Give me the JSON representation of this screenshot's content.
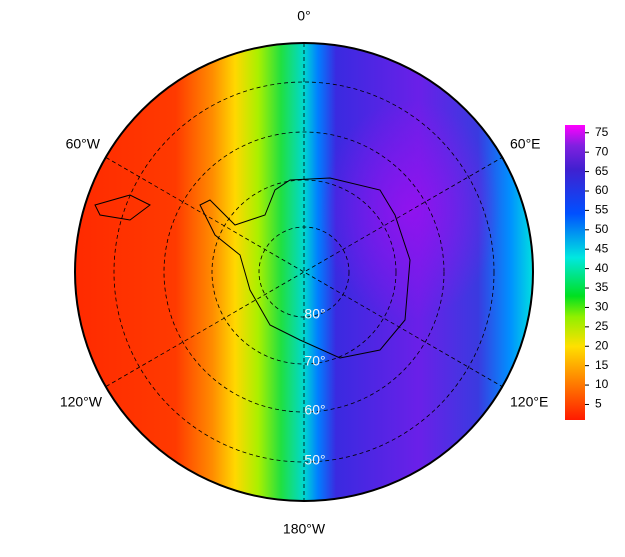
{
  "map": {
    "longitude_labels": [
      "0°",
      "60°E",
      "120°E",
      "180°W",
      "120°W",
      "60°W"
    ],
    "latitude_labels": [
      "80°",
      "70°",
      "60°",
      "50°"
    ],
    "colorbar": {
      "lim": [
        1,
        77
      ],
      "ticks": [
        5,
        10,
        15,
        20,
        25,
        30,
        35,
        40,
        45,
        50,
        55,
        60,
        65,
        70,
        75
      ]
    }
  }
}
